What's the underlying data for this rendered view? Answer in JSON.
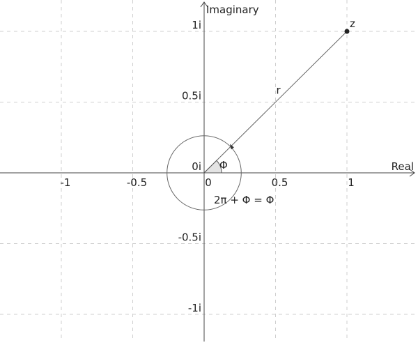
{
  "axes": {
    "x_label": "Real",
    "y_label": "Imaginary",
    "x_range": [
      -1.45,
      1.48
    ],
    "y_range": [
      -1.18,
      1.2
    ],
    "x_ticks": [
      {
        "value": -1,
        "label": "-1"
      },
      {
        "value": -0.5,
        "label": "-0.5"
      },
      {
        "value": 0,
        "label": "0"
      },
      {
        "value": 0.5,
        "label": "0.5"
      },
      {
        "value": 1,
        "label": "1"
      }
    ],
    "y_ticks": [
      {
        "value": 1,
        "label": "1i"
      },
      {
        "value": 0.5,
        "label": "0.5i"
      },
      {
        "value": 0,
        "label": "0i"
      },
      {
        "value": -0.5,
        "label": "-0.5i"
      },
      {
        "value": -1,
        "label": "-1i"
      }
    ],
    "grid_x": [
      -1,
      -0.5,
      0.5,
      1
    ],
    "grid_y": [
      1,
      0.5,
      -0.5,
      -1
    ],
    "grid": true
  },
  "figure": {
    "point": {
      "label": "z",
      "x": 1,
      "y": 1
    },
    "radius_label": "r",
    "angle_label": "Φ",
    "circle_radius": 0.26,
    "equation": "2π + Φ = Φ",
    "colors": {
      "axis": "#444444",
      "grid": "#cfcfcf",
      "line": "#666666",
      "point": "#222222"
    }
  }
}
